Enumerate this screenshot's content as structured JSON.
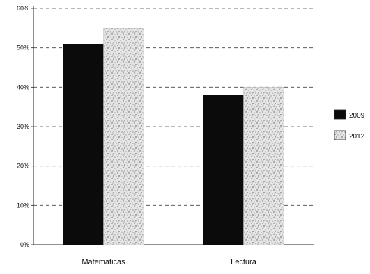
{
  "chart_data": {
    "type": "bar",
    "title": "",
    "xlabel": "",
    "ylabel": "",
    "categories": [
      "Matemáticas",
      "Lectura"
    ],
    "series": [
      {
        "name": "2009",
        "values": [
          51,
          38
        ],
        "color": "#0b0b0b",
        "fill": "solid"
      },
      {
        "name": "2012",
        "values": [
          55,
          40
        ],
        "color": "#9a9a9a",
        "fill": "speckled"
      }
    ],
    "ylim": [
      0,
      60
    ],
    "yticks": [
      {
        "value": 0,
        "label": "0%"
      },
      {
        "value": 10,
        "label": "10%"
      },
      {
        "value": 20,
        "label": "20%"
      },
      {
        "value": 30,
        "label": "30%"
      },
      {
        "value": 40,
        "label": "40%"
      },
      {
        "value": 50,
        "label": "50%"
      },
      {
        "value": 60,
        "label": "60%"
      }
    ],
    "grid": true,
    "grid_style": "dashed",
    "legend_position": "right"
  }
}
